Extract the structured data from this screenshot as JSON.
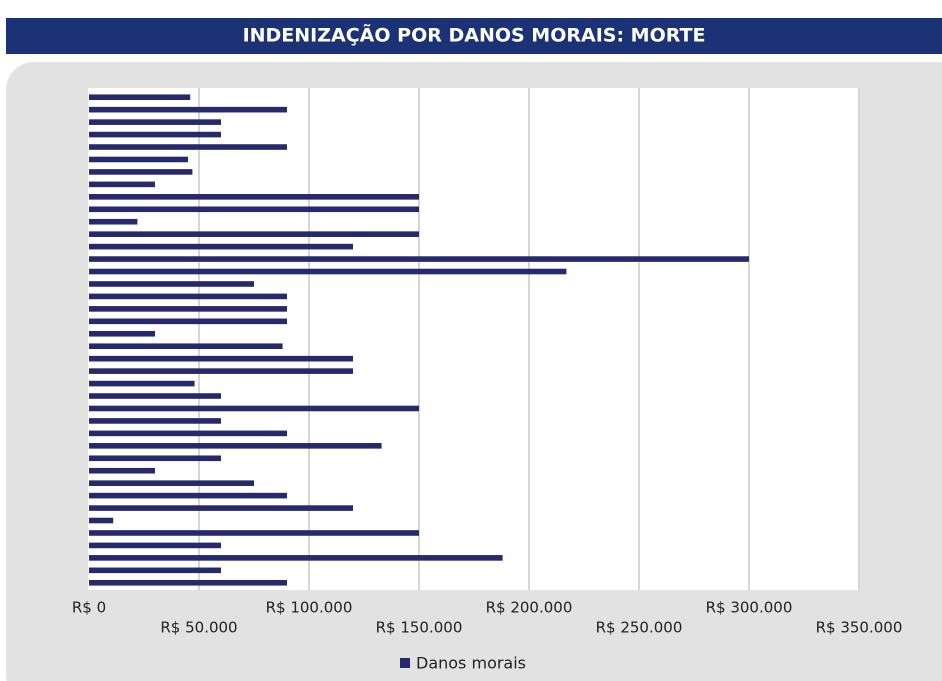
{
  "chart_data": {
    "type": "barh",
    "title": "INDENIZAÇÃO POR DANOS MORAIS: MORTE",
    "series": [
      {
        "name": "Danos morais",
        "color": "#262a6c",
        "values": [
          46000,
          90000,
          60000,
          60000,
          90000,
          45000,
          47000,
          30000,
          150000,
          150000,
          22000,
          150000,
          120000,
          300000,
          217000,
          75000,
          90000,
          90000,
          90000,
          30000,
          88000,
          120000,
          120000,
          48000,
          60000,
          150000,
          60000,
          90000,
          133000,
          60000,
          30000,
          75000,
          90000,
          120000,
          11000,
          150000,
          60000,
          188000,
          60000,
          90000
        ]
      }
    ],
    "xlim": [
      0,
      350000
    ],
    "xticks": [
      {
        "value": 0,
        "label": "R$ 0"
      },
      {
        "value": 50000,
        "label": "R$ 50.000"
      },
      {
        "value": 100000,
        "label": "R$ 100.000"
      },
      {
        "value": 150000,
        "label": "R$ 150.000"
      },
      {
        "value": 200000,
        "label": "R$ 200.000"
      },
      {
        "value": 250000,
        "label": "R$ 250.000"
      },
      {
        "value": 300000,
        "label": "R$ 300.000"
      },
      {
        "value": 350000,
        "label": "R$ 350.000"
      }
    ],
    "grid": true
  }
}
